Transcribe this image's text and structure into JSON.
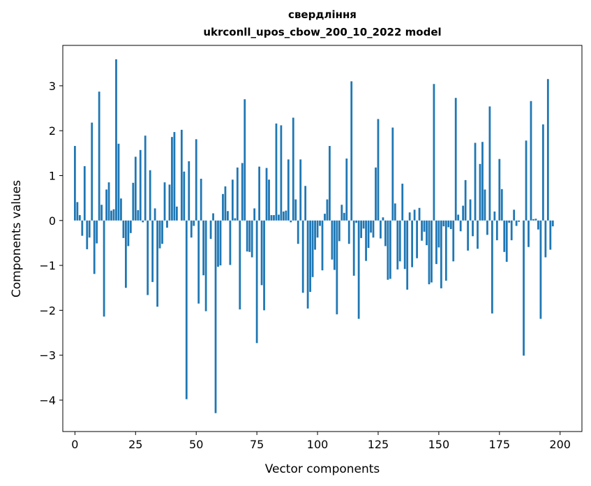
{
  "chart_data": {
    "type": "bar",
    "title": "свердління",
    "subtitle": "ukrconll_upos_cbow_200_10_2022 model",
    "xlabel": "Vector components",
    "ylabel": "Components values",
    "xlim": [
      -5,
      209
    ],
    "ylim": [
      -4.7,
      3.9
    ],
    "xticks": [
      0,
      25,
      50,
      75,
      100,
      125,
      150,
      175,
      200
    ],
    "xtick_labels": [
      "0",
      "25",
      "50",
      "75",
      "100",
      "125",
      "150",
      "175",
      "200"
    ],
    "yticks": [
      -4,
      -3,
      -2,
      -1,
      0,
      1,
      2,
      3
    ],
    "ytick_labels": [
      "−4",
      "−3",
      "−2",
      "−1",
      "0",
      "1",
      "2",
      "3"
    ],
    "bar_color": "#1f77b4",
    "values": [
      1.66,
      0.41,
      0.12,
      -0.34,
      1.21,
      -0.64,
      -0.38,
      2.18,
      -1.19,
      -0.51,
      2.87,
      0.35,
      -2.14,
      0.69,
      0.85,
      0.22,
      0.25,
      3.59,
      1.71,
      0.49,
      -0.39,
      -1.5,
      -0.57,
      -0.28,
      0.84,
      1.42,
      0.23,
      1.57,
      -0.04,
      1.89,
      -1.66,
      1.12,
      -1.37,
      0.27,
      -1.92,
      -0.62,
      -0.52,
      0.85,
      -0.16,
      0.8,
      1.86,
      1.97,
      0.31,
      0.0,
      2.02,
      1.09,
      -3.98,
      1.32,
      -0.38,
      -0.12,
      1.81,
      -1.85,
      0.93,
      -1.22,
      -2.02,
      0.0,
      -0.41,
      0.16,
      -4.29,
      -1.03,
      -1.0,
      0.59,
      0.76,
      0.21,
      -0.99,
      0.91,
      0.05,
      1.18,
      -1.98,
      1.28,
      2.7,
      -0.69,
      -0.7,
      -0.82,
      0.27,
      -2.73,
      1.2,
      -1.44,
      -2.0,
      1.17,
      0.91,
      0.12,
      0.12,
      2.16,
      0.13,
      2.12,
      0.2,
      0.22,
      1.36,
      -0.04,
      2.29,
      0.47,
      -0.52,
      1.36,
      -1.61,
      0.77,
      -1.96,
      -1.59,
      -1.26,
      -0.65,
      -0.38,
      -0.12,
      -1.11,
      0.15,
      0.47,
      1.66,
      -0.87,
      -1.1,
      -2.09,
      -0.46,
      0.35,
      0.17,
      1.38,
      -0.52,
      3.1,
      -1.23,
      -0.05,
      -2.19,
      -0.39,
      -0.18,
      -0.9,
      -0.61,
      -0.27,
      -0.38,
      1.18,
      2.26,
      -0.4,
      0.07,
      -0.57,
      -1.32,
      -1.3,
      2.07,
      0.38,
      -1.09,
      -0.91,
      0.82,
      -1.08,
      -1.54,
      0.18,
      -1.04,
      0.24,
      -0.84,
      0.28,
      -0.45,
      -0.25,
      -0.55,
      -1.42,
      -1.38,
      3.04,
      -0.97,
      -0.6,
      -1.51,
      -0.13,
      -1.34,
      -0.15,
      -0.19,
      -0.91,
      2.73,
      0.13,
      -0.24,
      0.33,
      0.9,
      -0.67,
      0.47,
      -0.35,
      1.73,
      -0.63,
      1.26,
      1.75,
      0.69,
      -0.32,
      2.54,
      -2.07,
      0.2,
      -0.44,
      1.37,
      0.7,
      -0.7,
      -0.92,
      -0.05,
      -0.44,
      0.24,
      -0.12,
      -0.03,
      0.0,
      -3.01,
      1.78,
      -0.59,
      2.66,
      0.03,
      0.04,
      -0.2,
      -2.19,
      2.14,
      -0.82,
      3.15,
      -0.65,
      -0.13
    ]
  }
}
